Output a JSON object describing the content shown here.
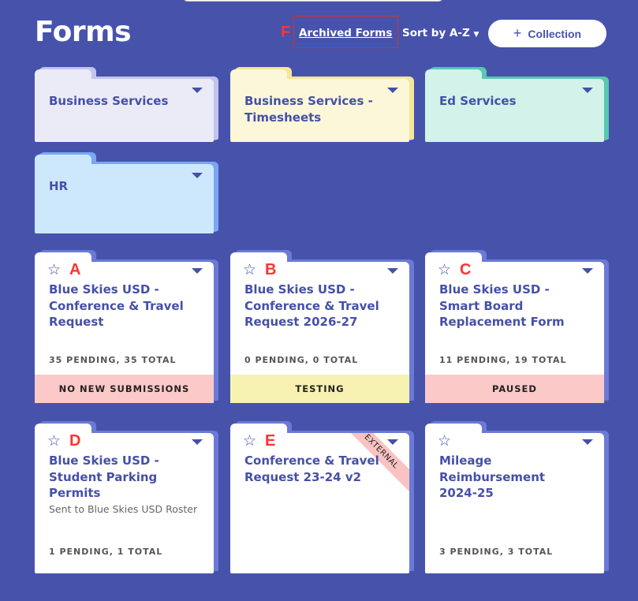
{
  "header": {
    "title": "Forms",
    "archived_label": "Archived Forms",
    "sort_label": "Sort by A-Z",
    "sort_icon": "caret-down-icon",
    "collection_label": "Collection",
    "collection_icon": "plus-icon"
  },
  "annotations": {
    "a": "A",
    "b": "B",
    "c": "C",
    "d": "D",
    "e": "E",
    "f": "F"
  },
  "folders": [
    {
      "name": "Business Services",
      "color": "#ebebf8",
      "accent": "#c3c3ee"
    },
    {
      "name": "Business Services - Timesheets",
      "color": "#fbf7d8",
      "accent": "#f3e79a"
    },
    {
      "name": "Ed Services",
      "color": "#d3f2ea",
      "accent": "#57c9ae"
    },
    {
      "name": "HR",
      "color": "#cde7fd",
      "accent": "#7aa6f5"
    }
  ],
  "forms": [
    {
      "title": "Blue Skies USD - Conference & Travel Request",
      "stats": "35 PENDING, 35 TOTAL",
      "status": "NO NEW SUBMISSIONS",
      "status_color": "#fcc9c9"
    },
    {
      "title": "Blue Skies USD - Conference & Travel Request 2026-27",
      "stats": "0 PENDING, 0 TOTAL",
      "status": "TESTING",
      "status_color": "#f7f2b2"
    },
    {
      "title": "Blue Skies USD - Smart Board Replacement Form",
      "stats": "11 PENDING, 19 TOTAL",
      "status": "PAUSED",
      "status_color": "#fcc9c9"
    },
    {
      "title": "Blue Skies USD - Student Parking Permits",
      "subtitle": "Sent to Blue Skies USD Roster",
      "stats": "1 PENDING, 1 TOTAL"
    },
    {
      "title": "Conference & Travel Request 23-24 v2",
      "ribbon": "EXTERNAL"
    },
    {
      "title": "Mileage Reimbursement 2024-25",
      "stats": "3 PENDING, 3 TOTAL"
    }
  ]
}
